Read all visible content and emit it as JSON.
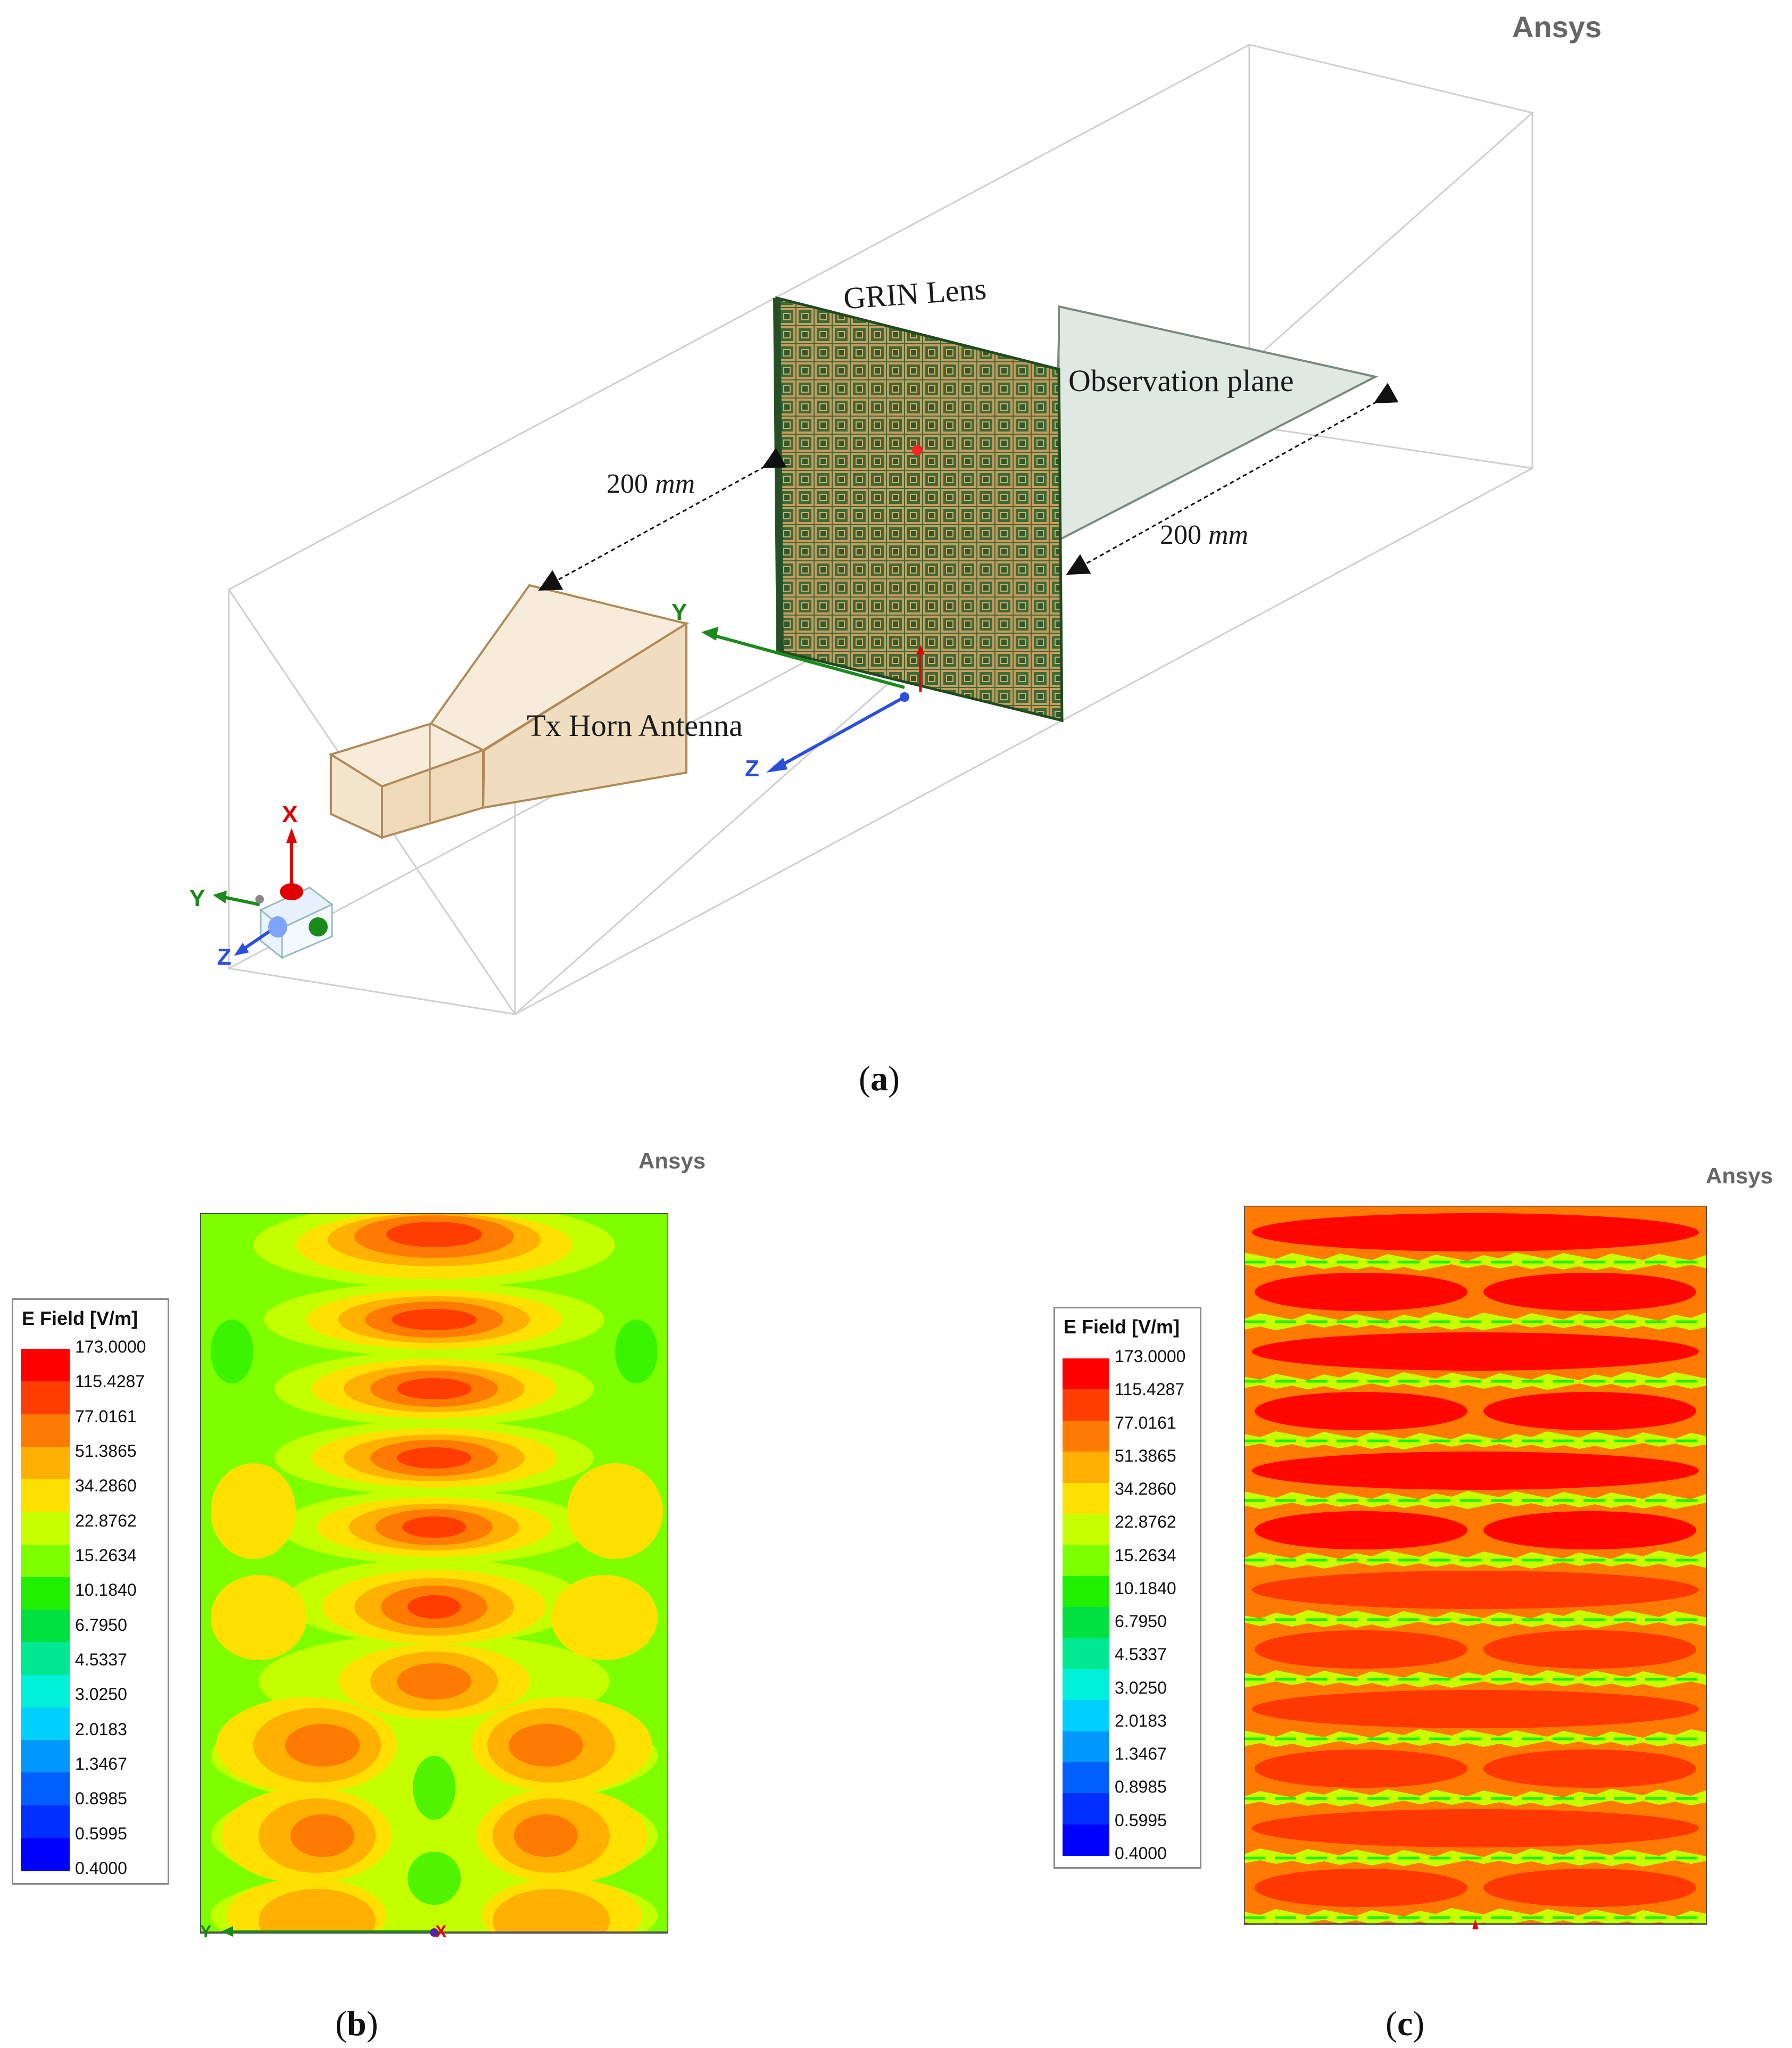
{
  "panel_a": {
    "brand": "Ansys",
    "labels": {
      "lens": "GRIN Lens",
      "plane": "Observation  plane",
      "horn": "Tx Horn Antenna",
      "dist1_value": "200",
      "dist1_unit": "mm",
      "dist2_value": "200",
      "dist2_unit": "mm"
    },
    "axes_local": {
      "y": "Y",
      "z": "Z"
    },
    "axes_triad": {
      "x": "X",
      "y": "Y",
      "z": "Z"
    },
    "caption_letter": "a"
  },
  "panel_b": {
    "brand": "Ansys",
    "caption_letter": "b",
    "axis_y": "Y",
    "axis_x": "X"
  },
  "panel_c": {
    "brand": "Ansys",
    "caption_letter": "c"
  },
  "legend": {
    "title": "E Field [V/m]",
    "values": [
      "173.0000",
      "115.4287",
      "77.0161",
      "51.3865",
      "34.2860",
      "22.8762",
      "15.2634",
      "10.1840",
      "6.7950",
      "4.5337",
      "3.0250",
      "2.0183",
      "1.3467",
      "0.8985",
      "0.5995",
      "0.4000"
    ],
    "colors": [
      "#ff0000",
      "#ff3d00",
      "#ff7a00",
      "#ffb000",
      "#ffe000",
      "#c8ff00",
      "#7dff00",
      "#20f000",
      "#00e040",
      "#00e890",
      "#00f0d8",
      "#00d0ff",
      "#0098ff",
      "#0060ff",
      "#0030ff",
      "#0000ff"
    ]
  },
  "colors": {
    "lens_fill": "#3b6b39",
    "lens_grid": "#c79a5a",
    "horn_fill": "#f3e4cc",
    "horn_edge": "#b08a58",
    "plane_fill": "#dfe8e2",
    "axis_x": "#e00000",
    "axis_y": "#1a8a1a",
    "axis_z": "#2a4fdd"
  }
}
